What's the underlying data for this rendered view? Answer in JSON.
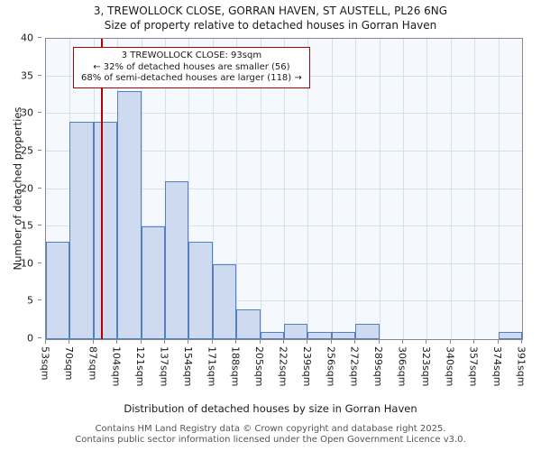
{
  "chart_data": {
    "type": "bar",
    "title": "3, TREWOLLOCK CLOSE, GORRAN HAVEN, ST AUSTELL, PL26 6NG",
    "subtitle": "Size of property relative to detached houses in Gorran Haven",
    "xlabel": "Distribution of detached houses by size in Gorran Haven",
    "ylabel": "Number of detached properties",
    "categories": [
      "53sqm",
      "70sqm",
      "87sqm",
      "104sqm",
      "121sqm",
      "137sqm",
      "154sqm",
      "171sqm",
      "188sqm",
      "205sqm",
      "222sqm",
      "239sqm",
      "256sqm",
      "272sqm",
      "289sqm",
      "306sqm",
      "323sqm",
      "340sqm",
      "357sqm",
      "374sqm",
      "391sqm"
    ],
    "bin_edges_sqm": [
      53,
      70,
      87,
      104,
      121,
      137,
      154,
      171,
      188,
      205,
      222,
      239,
      256,
      272,
      289,
      306,
      323,
      340,
      357,
      374,
      391
    ],
    "values": [
      13,
      29,
      29,
      33,
      15,
      21,
      13,
      10,
      4,
      1,
      2,
      1,
      1,
      2,
      0,
      0,
      0,
      0,
      0,
      1
    ],
    "ylim": [
      0,
      40
    ],
    "ytick_step": 5,
    "grid": true,
    "legend": "none",
    "marker": {
      "value_sqm": 93,
      "color": "#b30000"
    },
    "colors": {
      "bar_fill": "#cddaf0",
      "bar_border": "#5580c0",
      "grid": "#d4dfef",
      "plot_bg": "#f5f8fd",
      "axis": "#888888",
      "text": "#1a1a1a"
    }
  },
  "annotation": {
    "line1": "3 TREWOLLOCK CLOSE: 93sqm",
    "line2": "← 32% of detached houses are smaller (56)",
    "line3": "68% of semi-detached houses are larger (118) →",
    "border_color": "#b30000"
  },
  "footer": {
    "line1": "Contains HM Land Registry data © Crown copyright and database right 2025.",
    "line2": "Contains public sector information licensed under the Open Government Licence v3.0."
  }
}
